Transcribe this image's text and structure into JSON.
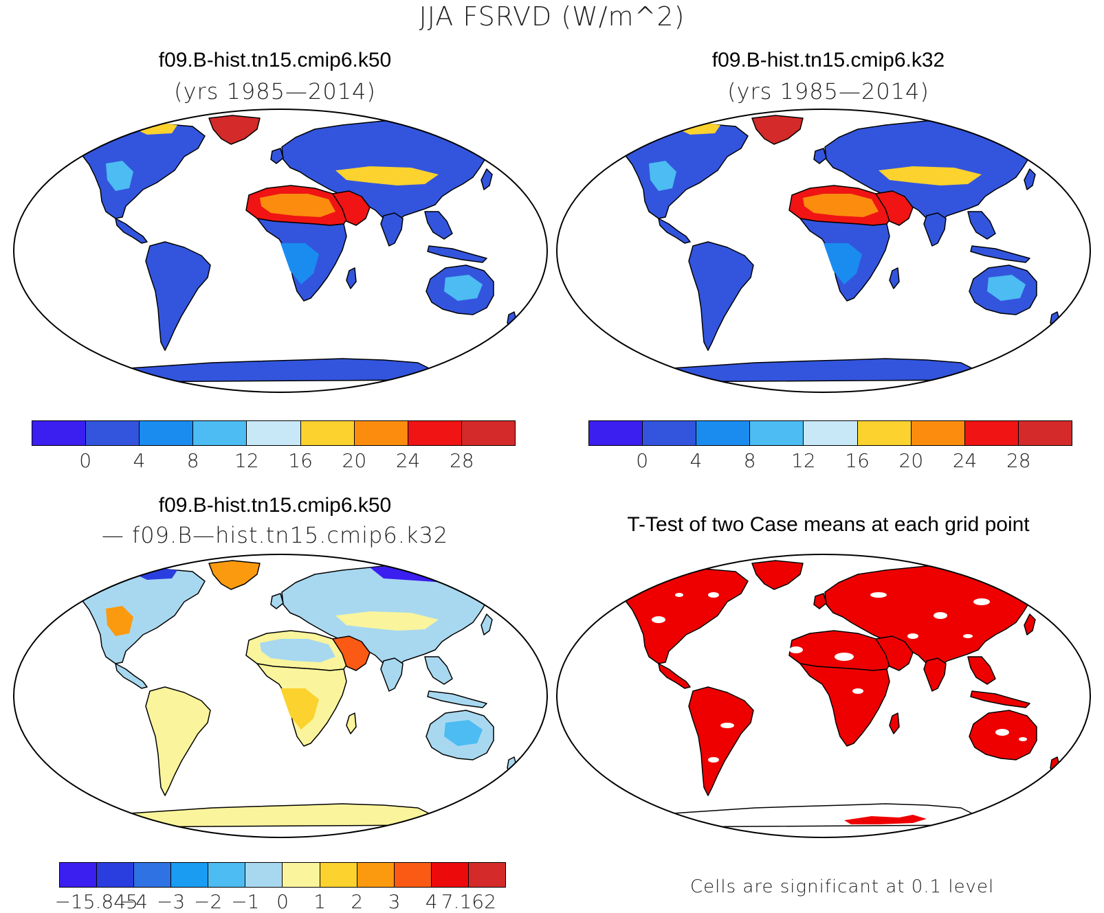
{
  "figure": {
    "title": "JJA FSRVD (W/m^2)"
  },
  "panels": [
    {
      "id": "k50",
      "title": "f09.B-hist.tn15.cmip6.k50",
      "subtitle": "(yrs 1985—2014)",
      "scheme": "abs"
    },
    {
      "id": "k32",
      "title": "f09.B-hist.tn15.cmip6.k32",
      "subtitle": "(yrs 1985—2014)",
      "scheme": "abs"
    },
    {
      "id": "diff",
      "title": "f09.B-hist.tn15.cmip6.k50",
      "subtitle": "— f09.B—hist.tn15.cmip6.k32",
      "scheme": "diff"
    },
    {
      "id": "ttest",
      "title": "T-Test of two Case means at each grid point",
      "subtitle": "",
      "scheme": "sig"
    }
  ],
  "colorbars": {
    "abs": {
      "colors": [
        "#3b1ef0",
        "#3355dd",
        "#1a8cf0",
        "#4cbcf2",
        "#c8e8f8",
        "#fbd22e",
        "#fb8c0e",
        "#f01414",
        "#d42a2a"
      ],
      "tick_labels": [
        "0",
        "4",
        "8",
        "12",
        "16",
        "20",
        "24",
        "28"
      ]
    },
    "diff": {
      "colors": [
        "#3b1ef0",
        "#2a3ee0",
        "#2f72e4",
        "#1a9cf2",
        "#4cbcf2",
        "#a8d8f0",
        "#faf49c",
        "#fbd22e",
        "#fb9a0e",
        "#fb5a14",
        "#ec0a0a",
        "#d42a2a"
      ],
      "tick_labels": [
        "−15.845",
        "−4",
        "−3",
        "−2",
        "−1",
        "0",
        "1",
        "2",
        "3",
        "4",
        "7.162"
      ]
    }
  },
  "significance_note": "Cells are significant at 0.1 level",
  "region_colors": {
    "abs_k50": {
      "greenland": "#d42a2a",
      "north_america": "#3355dd",
      "na_hot": "#4cbcf2",
      "south_america": "#3355dd",
      "europe_asia": "#3355dd",
      "asia_band": "#fbd22e",
      "sahara": "#f01414",
      "sahara_core": "#fb8c0e",
      "arabia": "#f01414",
      "africa_south": "#3355dd",
      "africa_mid": "#1a8cf0",
      "australia": "#3355dd",
      "australia_inner": "#4cbcf2",
      "antarctica": "#3355dd",
      "arctic_na": "#fbd22e"
    },
    "abs_k32": {
      "greenland": "#d42a2a",
      "north_america": "#3355dd",
      "na_hot": "#4cbcf2",
      "south_america": "#3355dd",
      "europe_asia": "#3355dd",
      "asia_band": "#fbd22e",
      "sahara": "#f01414",
      "sahara_core": "#fb8c0e",
      "arabia": "#f01414",
      "africa_south": "#3355dd",
      "africa_mid": "#1a8cf0",
      "australia": "#3355dd",
      "australia_inner": "#4cbcf2",
      "antarctica": "#3355dd",
      "arctic_na": "#fbd22e"
    },
    "diff": {
      "greenland": "#fb9a0e",
      "north_america": "#a8d8f0",
      "na_hot": "#fb9a0e",
      "south_america": "#faf49c",
      "europe_asia": "#a8d8f0",
      "asia_band": "#faf49c",
      "sahara": "#faf49c",
      "sahara_core": "#a8d8f0",
      "arabia": "#fb5a14",
      "africa_south": "#faf49c",
      "africa_mid": "#fbd22e",
      "australia": "#a8d8f0",
      "australia_inner": "#4cbcf2",
      "antarctica": "#faf49c",
      "arctic_na": "#2a3ee0",
      "siberia": "#3b1ef0"
    },
    "sig": {
      "land": "#ee0000",
      "holes": "#ffffff"
    }
  }
}
